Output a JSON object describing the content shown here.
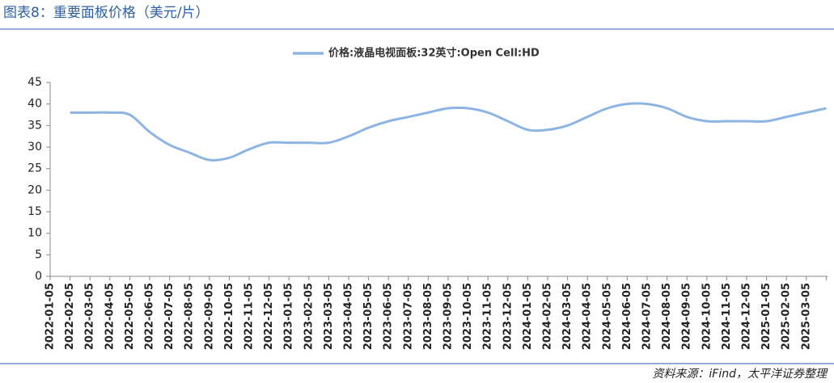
{
  "chart_data": {
    "type": "line",
    "title": "图表8：重要面板价格（美元/片）",
    "source": "资料来源：iFind，太平洋证券整理",
    "categories": [
      "2022-01-05",
      "2022-02-05",
      "2022-03-05",
      "2022-04-05",
      "2022-05-05",
      "2022-06-05",
      "2022-07-05",
      "2022-08-05",
      "2022-09-05",
      "2022-10-05",
      "2022-11-05",
      "2022-12-05",
      "2023-01-05",
      "2023-02-05",
      "2023-03-05",
      "2023-04-05",
      "2023-05-05",
      "2023-06-05",
      "2023-07-05",
      "2023-08-05",
      "2023-09-05",
      "2023-10-05",
      "2023-11-05",
      "2023-12-05",
      "2024-01-05",
      "2024-02-05",
      "2024-03-05",
      "2024-04-05",
      "2024-05-05",
      "2024-06-05",
      "2024-07-05",
      "2024-08-05",
      "2024-09-05",
      "2024-10-05",
      "2024-11-05",
      "2024-12-05",
      "2025-01-05",
      "2025-02-05",
      "2025-03-05",
      null
    ],
    "series": [
      {
        "name": "价格:液晶电视面板:32英寸:Open Cell:HD",
        "color": "#8db4e2",
        "values": [
          null,
          38,
          38,
          38,
          37.5,
          33.5,
          30.5,
          28.7,
          27,
          27.5,
          29.5,
          31,
          31,
          31,
          31,
          32.5,
          34.5,
          36,
          37,
          38,
          39,
          39,
          38,
          36,
          34,
          34,
          35,
          37,
          39,
          40,
          40,
          39,
          37,
          36,
          36,
          36,
          36,
          37,
          38,
          39
        ]
      }
    ],
    "ylim": [
      0,
      45
    ],
    "yticks": [
      0,
      5,
      10,
      15,
      20,
      25,
      30,
      35,
      40,
      45
    ],
    "legend": "top"
  }
}
